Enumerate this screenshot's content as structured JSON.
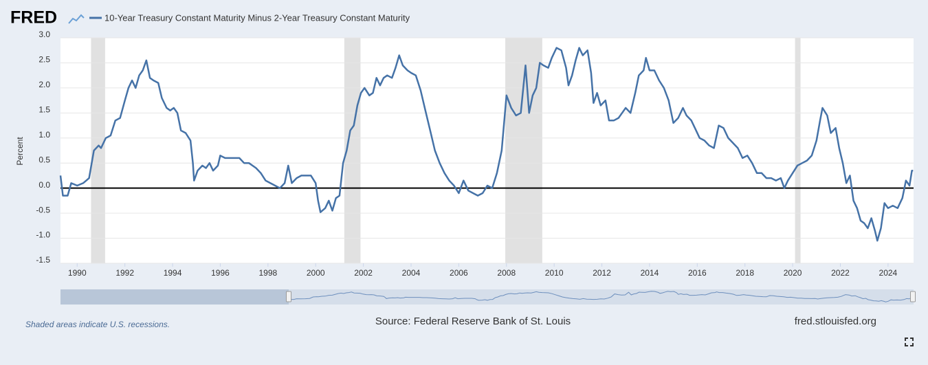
{
  "logo": "FRED",
  "chart_data": {
    "type": "line",
    "y_label": "Percent",
    "x": [
      1989.3,
      1989.4,
      1989.6,
      1989.75,
      1990.0,
      1990.25,
      1990.5,
      1990.7,
      1990.9,
      1991.0,
      1991.2,
      1991.4,
      1991.6,
      1991.8,
      1992.0,
      1992.15,
      1992.3,
      1992.45,
      1992.6,
      1992.75,
      1992.9,
      1993.05,
      1993.2,
      1993.4,
      1993.55,
      1993.75,
      1993.9,
      1994.05,
      1994.2,
      1994.35,
      1994.55,
      1994.75,
      1994.85,
      1994.9,
      1995.05,
      1995.25,
      1995.4,
      1995.55,
      1995.7,
      1995.9,
      1996.0,
      1996.2,
      1996.4,
      1996.6,
      1996.8,
      1997.0,
      1997.2,
      1997.5,
      1997.7,
      1997.9,
      1998.1,
      1998.3,
      1998.5,
      1998.7,
      1998.85,
      1999.0,
      1999.2,
      1999.4,
      1999.6,
      1999.8,
      2000.0,
      2000.1,
      2000.2,
      2000.4,
      2000.55,
      2000.7,
      2000.85,
      2001.0,
      2001.15,
      2001.3,
      2001.45,
      2001.6,
      2001.75,
      2001.9,
      2002.05,
      2002.25,
      2002.4,
      2002.55,
      2002.7,
      2002.85,
      2003.0,
      2003.2,
      2003.35,
      2003.5,
      2003.65,
      2003.85,
      2004.0,
      2004.2,
      2004.4,
      2004.6,
      2004.8,
      2005.0,
      2005.2,
      2005.4,
      2005.6,
      2005.8,
      2006.0,
      2006.2,
      2006.4,
      2006.6,
      2006.8,
      2007.0,
      2007.2,
      2007.4,
      2007.6,
      2007.8,
      2008.0,
      2008.2,
      2008.4,
      2008.6,
      2008.8,
      2008.95,
      2009.1,
      2009.25,
      2009.4,
      2009.55,
      2009.75,
      2009.9,
      2010.1,
      2010.3,
      2010.5,
      2010.6,
      2010.75,
      2010.9,
      2011.05,
      2011.2,
      2011.4,
      2011.55,
      2011.65,
      2011.8,
      2011.95,
      2012.15,
      2012.3,
      2012.5,
      2012.7,
      2012.85,
      2013.0,
      2013.2,
      2013.4,
      2013.55,
      2013.75,
      2013.85,
      2014.0,
      2014.2,
      2014.4,
      2014.6,
      2014.8,
      2015.0,
      2015.2,
      2015.4,
      2015.55,
      2015.75,
      2015.9,
      2016.1,
      2016.3,
      2016.5,
      2016.7,
      2016.9,
      2017.1,
      2017.3,
      2017.5,
      2017.7,
      2017.9,
      2018.1,
      2018.3,
      2018.5,
      2018.7,
      2018.9,
      2019.1,
      2019.3,
      2019.5,
      2019.65,
      2019.8,
      2020.0,
      2020.2,
      2020.4,
      2020.6,
      2020.8,
      2021.0,
      2021.15,
      2021.25,
      2021.45,
      2021.6,
      2021.8,
      2021.95,
      2022.1,
      2022.25,
      2022.4,
      2022.55,
      2022.7,
      2022.85,
      2023.0,
      2023.15,
      2023.3,
      2023.45,
      2023.55,
      2023.7,
      2023.85,
      2024.0,
      2024.2,
      2024.4,
      2024.6,
      2024.75,
      2024.9,
      2025.0,
      2025.05
    ],
    "series": [
      {
        "name": "10-Year Treasury Constant Maturity Minus 2-Year Treasury Constant Maturity",
        "color": "#4572a7",
        "values": [
          0.25,
          -0.15,
          -0.15,
          0.1,
          0.05,
          0.1,
          0.2,
          0.75,
          0.85,
          0.8,
          1.0,
          1.05,
          1.35,
          1.4,
          1.75,
          2.0,
          2.15,
          2.0,
          2.25,
          2.35,
          2.55,
          2.2,
          2.15,
          2.1,
          1.8,
          1.6,
          1.55,
          1.6,
          1.5,
          1.15,
          1.1,
          0.95,
          0.5,
          0.15,
          0.35,
          0.45,
          0.4,
          0.5,
          0.35,
          0.45,
          0.65,
          0.6,
          0.6,
          0.6,
          0.6,
          0.5,
          0.5,
          0.4,
          0.3,
          0.15,
          0.1,
          0.05,
          0.0,
          0.1,
          0.45,
          0.1,
          0.2,
          0.25,
          0.25,
          0.25,
          0.1,
          -0.25,
          -0.48,
          -0.4,
          -0.25,
          -0.45,
          -0.2,
          -0.15,
          0.5,
          0.75,
          1.15,
          1.25,
          1.65,
          1.9,
          2.0,
          1.85,
          1.9,
          2.2,
          2.05,
          2.2,
          2.25,
          2.2,
          2.4,
          2.65,
          2.45,
          2.35,
          2.3,
          2.25,
          1.95,
          1.55,
          1.15,
          0.75,
          0.5,
          0.3,
          0.15,
          0.05,
          -0.1,
          0.15,
          -0.05,
          -0.1,
          -0.15,
          -0.1,
          0.05,
          0.0,
          0.3,
          0.75,
          1.85,
          1.6,
          1.45,
          1.5,
          2.45,
          1.5,
          1.85,
          2.0,
          2.5,
          2.45,
          2.4,
          2.6,
          2.8,
          2.75,
          2.4,
          2.05,
          2.25,
          2.55,
          2.8,
          2.65,
          2.75,
          2.3,
          1.7,
          1.9,
          1.65,
          1.75,
          1.35,
          1.35,
          1.4,
          1.5,
          1.6,
          1.5,
          1.9,
          2.25,
          2.35,
          2.6,
          2.35,
          2.35,
          2.15,
          2.0,
          1.75,
          1.3,
          1.4,
          1.6,
          1.45,
          1.35,
          1.2,
          1.0,
          0.95,
          0.85,
          0.8,
          1.25,
          1.2,
          1.0,
          0.9,
          0.8,
          0.6,
          0.65,
          0.5,
          0.3,
          0.3,
          0.2,
          0.2,
          0.15,
          0.2,
          0.0,
          0.15,
          0.3,
          0.45,
          0.5,
          0.55,
          0.65,
          0.95,
          1.35,
          1.6,
          1.45,
          1.1,
          1.2,
          0.8,
          0.5,
          0.1,
          0.25,
          -0.25,
          -0.4,
          -0.65,
          -0.7,
          -0.8,
          -0.6,
          -0.85,
          -1.05,
          -0.8,
          -0.3,
          -0.4,
          -0.35,
          -0.4,
          -0.2,
          0.15,
          0.05,
          0.35,
          0.35
        ]
      }
    ],
    "shaded_areas": [
      [
        1990.58,
        1991.17
      ],
      [
        2001.2,
        2001.88
      ],
      [
        2007.95,
        2009.5
      ],
      [
        2020.1,
        2020.33
      ]
    ],
    "shaded_color": "#e1e1e1",
    "xlim": [
      1989.3,
      2025.07
    ],
    "xticks": [
      1990,
      1992,
      1994,
      1996,
      1998,
      2000,
      2002,
      2004,
      2006,
      2008,
      2010,
      2012,
      2014,
      2016,
      2018,
      2020,
      2022,
      2024
    ],
    "ylim": [
      -1.5,
      3.0
    ],
    "yticks": [
      {
        "value": -1.5,
        "label": "-1.5"
      },
      {
        "value": -1,
        "label": "-1.0"
      },
      -0.5,
      {
        "value": 0,
        "label": "0.0"
      },
      0.5,
      {
        "value": 1,
        "label": "1.0"
      },
      1.5,
      {
        "value": 2,
        "label": "2.0"
      },
      2.5,
      {
        "value": 3,
        "label": "3.0"
      }
    ],
    "grid": true
  },
  "footnote": "Shaded areas indicate U.S. recessions.",
  "source": "Source: Federal Reserve Bank of St. Louis",
  "site": "fred.stlouisfed.org"
}
